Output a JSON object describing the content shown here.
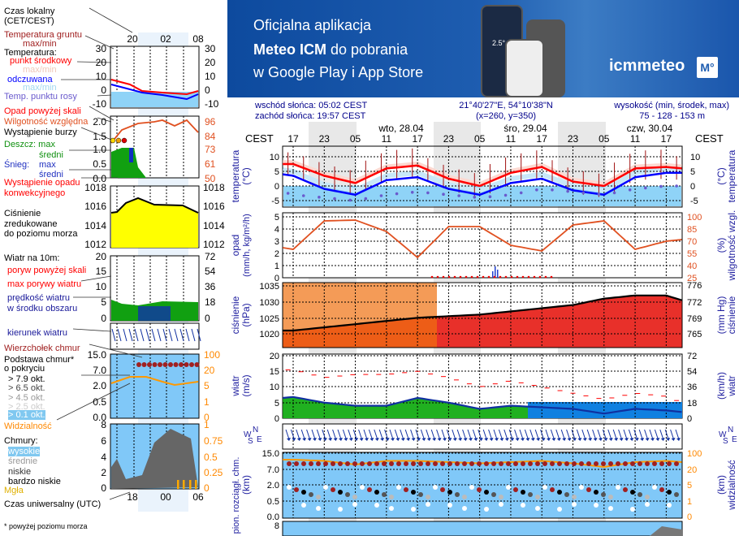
{
  "banner": {
    "line1": "Oficjalna aplikacja",
    "line2_bold": "Meteo ICM",
    "line2_rest": " do pobrania",
    "line3": "w Google Play i App Store",
    "logo": "icmmeteo",
    "logo_badge": "M°",
    "phone_temp": "2.5°"
  },
  "header": {
    "sunrise": "wschód słońca: 05:02 CEST",
    "sunset": "zachód słońca: 19:57 CEST",
    "coords": "21°40'27\"E, 54°10'38\"N",
    "grid": "(x=260,  y=350)",
    "elev_label": "wysokość (min, środek, max)",
    "elev": "75 - 128 - 153 m"
  },
  "time_axis": {
    "tz": "CEST",
    "hours": [
      "17",
      "23",
      "05",
      "11",
      "17",
      "23",
      "05",
      "11",
      "17",
      "23",
      "05",
      "11",
      "17"
    ],
    "days": [
      "wto, 28.04",
      "śro, 29.04",
      "czw, 30.04"
    ]
  },
  "axes": {
    "temp_left": [
      "10",
      "5",
      "0",
      "-5"
    ],
    "temp_title": "temperatura",
    "temp_unit": "(°C)",
    "precip_left": [
      "5",
      "4",
      "3",
      "2",
      "1",
      "0"
    ],
    "precip_title": "opad",
    "precip_unit": "(mm/h, kg/m²/h)",
    "hum_right": [
      "100",
      "85",
      "70",
      "55",
      "40",
      "25"
    ],
    "hum_title": "wilgotność wzgl.",
    "hum_unit": "(%)",
    "press_left": [
      "1035",
      "1030",
      "1025",
      "1020"
    ],
    "press_title": "ciśnienie",
    "press_unit": "(hPa)",
    "mmhg_right": [
      "776",
      "772",
      "769",
      "765"
    ],
    "mmhg_unit": "(mm Hg)",
    "wind_left": [
      "20",
      "15",
      "10",
      "5",
      "0"
    ],
    "wind_title": "wiatr",
    "wind_unit": "(m/s)",
    "kmh_right": [
      "72",
      "54",
      "36",
      "18",
      "0"
    ],
    "kmh_unit": "(km/h)",
    "cloud_left": [
      "15.0",
      "7.0",
      "2.0",
      "0.5",
      "0.0"
    ],
    "cloud_title": "pion. rozciągł. chm.",
    "cloud_unit": "(km)",
    "vis_right": [
      "100",
      "20",
      "5",
      "1",
      "0"
    ],
    "vis_title": "widzialność",
    "vis_unit": "(km)",
    "cover_top": "8",
    "rose": {
      "n": "N",
      "w": "W",
      "e": "E",
      "s": "S"
    }
  },
  "legend": {
    "local_time": "Czas lokalny",
    "local_tz": "(CET/CEST)",
    "ground_temp": "Temperatura gruntu",
    "ground_mm": "max/min",
    "temperature": "Temperatura:",
    "mid": "punkt środkowy",
    "mid_mm": "max/min",
    "feels": "odczuwana",
    "feels_mm": "max/min",
    "dew": "Temp. punktu rosy",
    "precip_over": "Opad powyżej skali",
    "humidity": "Wilgotność względna",
    "storm": "Wystąpienie burzy",
    "rain": "Deszcz: max",
    "rain_avg": "średni",
    "snow": "Śnieg:",
    "snow_max": "max",
    "snow_avg": "średni",
    "convective1": "Wystąpienie opadu",
    "convective2": "konwekcyjnego",
    "press1": "Ciśnienie",
    "press2": "zredukowane",
    "press3": "do poziomu morza",
    "wind": "Wiatr na 10m:",
    "gust_over": "poryw powyżej skali",
    "gust_max": "max porywy wiatru",
    "wind_speed1": "prędkość wiatru",
    "wind_speed2": "w środku obszaru",
    "wind_dir": "kierunek wiatru",
    "cloud_top": "Wierzchołek chmur",
    "cloud_base1": "Podstawa chmur*",
    "cloud_base2": "o pokryciu",
    "ok79": "> 7.9 okt.",
    "ok65": "> 6.5 okt.",
    "ok45": "> 4.5 okt.",
    "ok25": "> 2.5 okt.",
    "ok01": "> 0.1 okt.",
    "visibility": "Widzialność",
    "clouds": "Chmury:",
    "high": "wysokie",
    "mid_c": "średnie",
    "low": "niskie",
    "very_low": "bardzo niskie",
    "fog": "Mgła",
    "utc": "Czas uniwersalny (UTC)",
    "footnote": "* powyżej poziomu morza",
    "lt_hours": [
      "20",
      "02",
      "08"
    ],
    "utc_hours": [
      "18",
      "00",
      "06"
    ],
    "t_l": [
      "30",
      "20",
      "10",
      "0",
      "-10"
    ],
    "p_l": [
      "2.0",
      "1.5",
      "1.0",
      "0.5",
      "0.0"
    ],
    "h_r": [
      "96",
      "84",
      "73",
      "61",
      "50"
    ],
    "pr": [
      "1018",
      "1016",
      "1014",
      "1012"
    ],
    "w_l": [
      "20",
      "15",
      "10",
      "5",
      "0"
    ],
    "w_r": [
      "72",
      "54",
      "36",
      "18",
      "0"
    ],
    "c_l": [
      "15.0",
      "7.0",
      "2.0",
      "0.5",
      "0.0"
    ],
    "c_r": [
      "100",
      "20",
      "5",
      "1",
      "0"
    ],
    "cc_l": [
      "8",
      "6",
      "4",
      "2",
      "0"
    ],
    "cc_r": [
      "1",
      "0.75",
      "0.5",
      "0.25",
      "0"
    ]
  },
  "colors": {
    "temp": "#ff0000",
    "feels": "#0000ff",
    "dew": "#6a5acd",
    "humidity": "#e05020",
    "pressure": "#e8002a",
    "wind": "#22bb22",
    "gust": "#ff0000",
    "cloudbg": "#80c8f8",
    "night": "#e8e8e8"
  },
  "chart_data": {
    "type": "line",
    "x_hours_from_first_17": [
      -2,
      0,
      6,
      12,
      18,
      24,
      30,
      36,
      42,
      48,
      54,
      60,
      66,
      72,
      75
    ],
    "series": [
      {
        "name": "temperatura (°C)",
        "values": [
          7.5,
          7.5,
          3.5,
          1,
          6,
          7,
          2.5,
          0,
          4.5,
          6.5,
          1.5,
          0,
          6,
          6.5,
          6
        ]
      },
      {
        "name": "odczuwana (°C)",
        "values": [
          4,
          3.5,
          -1,
          -3,
          2,
          3,
          -1,
          -3,
          1,
          2.5,
          -1.5,
          -3,
          3,
          4.5,
          4.5
        ]
      },
      {
        "name": "temp. punktu rosy (°C)",
        "values": [
          -2,
          -3,
          -4,
          -5,
          -3,
          -2,
          -3,
          -4,
          -3,
          -1,
          -2,
          -3,
          -1,
          0,
          0
        ]
      },
      {
        "name": "wilgotność wzgl. (%)",
        "values": [
          62,
          60,
          95,
          96,
          82,
          50,
          88,
          88,
          65,
          58,
          90,
          95,
          60,
          70,
          72
        ]
      },
      {
        "name": "ciśnienie (hPa)",
        "values": [
          1021,
          1021,
          1022,
          1023,
          1024,
          1025,
          1025.5,
          1026,
          1027,
          1028,
          1029,
          1031,
          1032,
          1032,
          1030.5
        ]
      },
      {
        "name": "wiatr (m/s)",
        "values": [
          6.5,
          6.8,
          5,
          4,
          4,
          6.5,
          5,
          3,
          4,
          3.5,
          3,
          1.5,
          3,
          2.5,
          2
        ]
      },
      {
        "name": "max porywy (m/s)",
        "values": [
          15.5,
          15.5,
          13,
          14,
          14,
          15,
          13,
          10,
          12,
          10,
          8,
          6,
          8,
          7,
          5
        ]
      },
      {
        "name": "widzialność (km)",
        "values": [
          60,
          60,
          55,
          40,
          55,
          55,
          50,
          45,
          50,
          55,
          45,
          30,
          50,
          55,
          50
        ]
      }
    ]
  }
}
